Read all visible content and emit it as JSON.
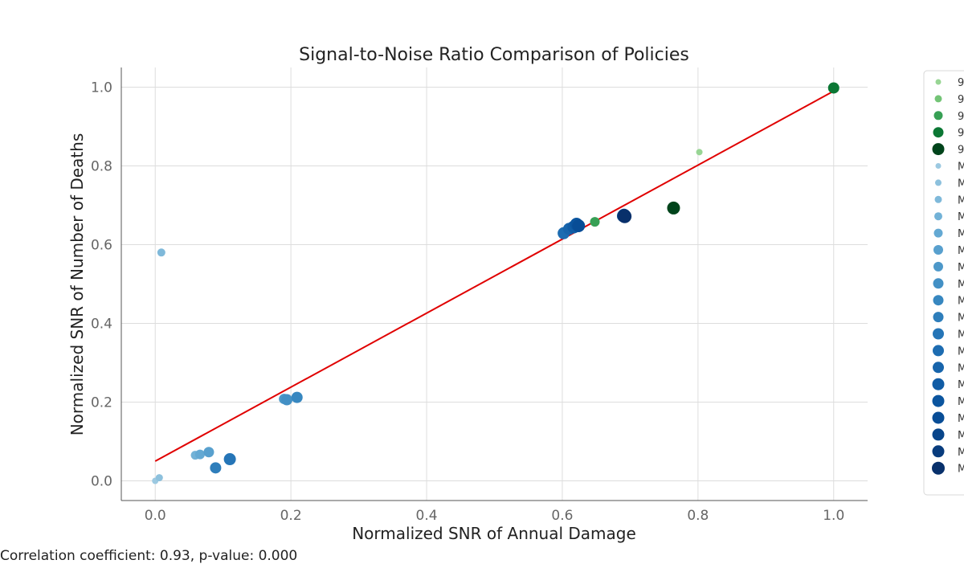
{
  "chart_data": {
    "type": "scatter",
    "title": "Signal-to-Noise Ratio Comparison of Policies",
    "xlabel": "Normalized SNR of Annual Damage",
    "ylabel": "Normalized SNR of Number of Deaths",
    "xlim": [
      -0.05,
      1.05
    ],
    "ylim": [
      -0.05,
      1.05
    ],
    "xticks": [
      "0.0",
      "0.2",
      "0.4",
      "0.6",
      "0.8",
      "1.0"
    ],
    "yticks": [
      "0.0",
      "0.2",
      "0.4",
      "0.6",
      "0.8",
      "1.0"
    ],
    "grid": true,
    "legend_position": "outside-right",
    "regression_line": {
      "x": [
        0.0,
        1.0
      ],
      "y": [
        0.05,
        0.99
      ],
      "color": "#e00000"
    },
    "footer_note": "Correlation coefficient: 0.93, p-value: 0.000",
    "series": [
      {
        "legend_label": "9",
        "color": "#98d594",
        "size": 4,
        "points": [
          [
            0.802,
            0.835
          ]
        ]
      },
      {
        "legend_label": "9",
        "color": "#73c476",
        "size": 5,
        "points": [
          [
            0.625,
            0.652
          ]
        ]
      },
      {
        "legend_label": "9",
        "color": "#37a055",
        "size": 6,
        "points": [
          [
            0.648,
            0.658
          ]
        ]
      },
      {
        "legend_label": "9",
        "color": "#0b7734",
        "size": 7,
        "points": [
          [
            1.0,
            0.998
          ]
        ]
      },
      {
        "legend_label": "9",
        "color": "#00441b",
        "size": 8,
        "points": [
          [
            0.764,
            0.693
          ]
        ]
      },
      {
        "legend_label": "M",
        "color": "#9cc9e1",
        "size": 4,
        "points": [
          [
            0.0,
            0.0
          ]
        ]
      },
      {
        "legend_label": "M",
        "color": "#8dc1dd",
        "size": 4.5,
        "points": [
          [
            0.006,
            0.008
          ]
        ]
      },
      {
        "legend_label": "M",
        "color": "#7fb9da",
        "size": 5,
        "points": [
          [
            0.009,
            0.58
          ]
        ]
      },
      {
        "legend_label": "M",
        "color": "#72b2d7",
        "size": 5.5,
        "points": [
          [
            0.059,
            0.065
          ]
        ]
      },
      {
        "legend_label": "M",
        "color": "#64a9d3",
        "size": 6,
        "points": [
          [
            0.066,
            0.067
          ]
        ]
      },
      {
        "legend_label": "M",
        "color": "#58a0ce",
        "size": 6.5,
        "points": [
          [
            0.079,
            0.073
          ]
        ]
      },
      {
        "legend_label": "M",
        "color": "#4d98c9",
        "size": 6.5,
        "points": [
          [
            0.19,
            0.208
          ]
        ]
      },
      {
        "legend_label": "M",
        "color": "#4390c5",
        "size": 7,
        "points": [
          [
            0.194,
            0.206
          ]
        ]
      },
      {
        "legend_label": "M",
        "color": "#3787c0",
        "size": 7,
        "points": [
          [
            0.209,
            0.212
          ]
        ]
      },
      {
        "legend_label": "M",
        "color": "#2e7ebb",
        "size": 7,
        "points": [
          [
            0.089,
            0.033
          ]
        ]
      },
      {
        "legend_label": "M",
        "color": "#2575b7",
        "size": 7.5,
        "points": [
          [
            0.11,
            0.055
          ]
        ]
      },
      {
        "legend_label": "M",
        "color": "#1d6cb1",
        "size": 7.5,
        "points": [
          [
            0.602,
            0.629
          ]
        ]
      },
      {
        "legend_label": "M",
        "color": "#1764ab",
        "size": 7.5,
        "points": [
          [
            0.61,
            0.64
          ]
        ]
      },
      {
        "legend_label": "M",
        "color": "#115ca5",
        "size": 8,
        "points": [
          [
            0.617,
            0.645
          ]
        ]
      },
      {
        "legend_label": "M",
        "color": "#0b559f",
        "size": 8,
        "points": [
          [
            0.621,
            0.652
          ]
        ]
      },
      {
        "legend_label": "M",
        "color": "#084d96",
        "size": 8,
        "points": [
          [
            0.624,
            0.648
          ]
        ]
      },
      {
        "legend_label": "M",
        "color": "#08458a",
        "size": 8,
        "points": [
          [
            0.69,
            0.673
          ]
        ]
      },
      {
        "legend_label": "M",
        "color": "#083c7d",
        "size": 8,
        "points": [
          [
            0.691,
            0.675
          ]
        ]
      },
      {
        "legend_label": "M",
        "color": "#08306b",
        "size": 8.5,
        "points": [
          [
            0.692,
            0.672
          ]
        ]
      }
    ]
  }
}
